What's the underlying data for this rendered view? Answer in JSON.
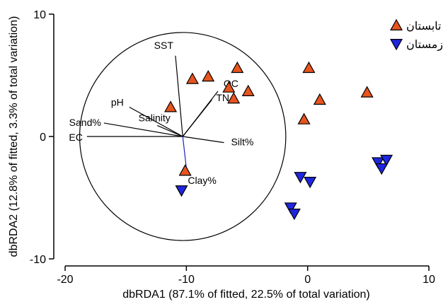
{
  "colors": {
    "summer": "#e8541e",
    "winter": "#1f26e0",
    "ink": "#000000",
    "clay_vector": "#2020c0"
  },
  "chart_data": {
    "type": "scatter",
    "title": "",
    "xlabel": "dbRDA1 (87.1% of fitted, 22.5% of total variation)",
    "ylabel": "dbRDA2 (12.8% of fitted, 3.3% of total variation)",
    "xlim": [
      -20,
      10
    ],
    "ylim": [
      -10,
      10
    ],
    "x_ticks": [
      -20,
      -10,
      0,
      10
    ],
    "y_ticks": [
      10,
      0,
      -10
    ],
    "x_tick_labels": [
      "-20",
      "-10",
      "0",
      "10"
    ],
    "y_tick_labels": [
      "10",
      "0",
      "-10"
    ],
    "grid": false,
    "legend_position": "top-right",
    "series": [
      {
        "name": "تابستان",
        "marker": "triangle-up",
        "color": "#e8541e",
        "points": [
          [
            -11.3,
            2.4
          ],
          [
            -9.5,
            4.7
          ],
          [
            -8.2,
            4.9
          ],
          [
            -5.8,
            5.6
          ],
          [
            -6.5,
            4.0
          ],
          [
            -6.1,
            3.1
          ],
          [
            -4.9,
            3.7
          ],
          [
            0.1,
            5.6
          ],
          [
            1.0,
            3.0
          ],
          [
            -0.3,
            1.4
          ],
          [
            4.9,
            3.6
          ],
          [
            -10.1,
            -2.8
          ]
        ]
      },
      {
        "name": "زمستان",
        "marker": "triangle-down",
        "color": "#1f26e0",
        "points": [
          [
            -10.4,
            -4.4
          ],
          [
            -0.6,
            -3.3
          ],
          [
            0.2,
            -3.7
          ],
          [
            -1.4,
            -5.8
          ],
          [
            -1.1,
            -6.3
          ],
          [
            5.8,
            -2.1
          ],
          [
            6.5,
            -1.9
          ],
          [
            6.1,
            -2.6
          ]
        ]
      }
    ],
    "circle": {
      "center": [
        -10.3,
        0
      ],
      "radius": 8.5
    },
    "vectors": [
      {
        "name": "SST",
        "end": [
          -10.9,
          6.6
        ]
      },
      {
        "name": "OC",
        "end": [
          -7.4,
          3.7
        ]
      },
      {
        "name": "TN",
        "end": [
          -7.9,
          3.0
        ]
      },
      {
        "name": "pH",
        "end": [
          -14.7,
          2.4
        ]
      },
      {
        "name": "Salinity",
        "end": [
          -12.4,
          0.9
        ]
      },
      {
        "name": "Sand%",
        "end": [
          -16.8,
          1.1
        ]
      },
      {
        "name": "EC",
        "end": [
          -18.2,
          0.0
        ]
      },
      {
        "name": "Silt%",
        "end": [
          -6.9,
          -0.5
        ]
      },
      {
        "name": "Clay%",
        "end": [
          -10.0,
          -2.6
        ]
      }
    ],
    "vector_origin": [
      -10.3,
      0
    ]
  }
}
